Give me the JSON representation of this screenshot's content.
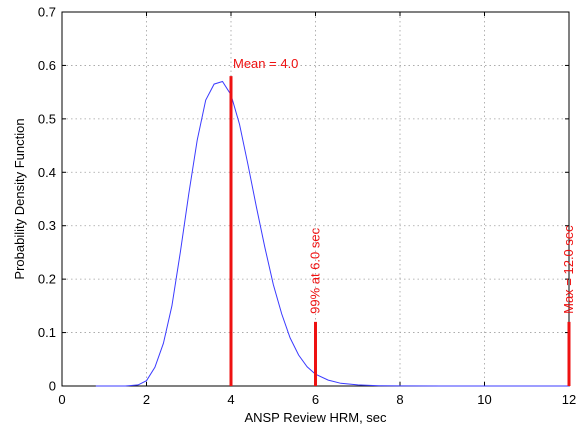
{
  "chart_data": {
    "type": "line",
    "xlabel": "ANSP Review HRM, sec",
    "ylabel": "Probability Density Function",
    "xlim": [
      0,
      12
    ],
    "ylim": [
      0,
      0.7
    ],
    "x_ticks": [
      "0",
      "2",
      "4",
      "6",
      "8",
      "10",
      "12"
    ],
    "y_ticks": [
      "0",
      "0.1",
      "0.2",
      "0.3",
      "0.4",
      "0.5",
      "0.6",
      "0.7"
    ],
    "grid": true,
    "line_color": "#3b3bff",
    "marker_color": "#ee1111",
    "curve": {
      "x": [
        0.8,
        1.5,
        1.8,
        2.0,
        2.2,
        2.4,
        2.6,
        2.8,
        3.0,
        3.2,
        3.4,
        3.6,
        3.8,
        4.0,
        4.2,
        4.4,
        4.6,
        4.8,
        5.0,
        5.2,
        5.4,
        5.6,
        5.8,
        6.0,
        6.3,
        6.6,
        7.0,
        7.5,
        8.0,
        9.0,
        10.0,
        11.0,
        12.0
      ],
      "y": [
        0.0,
        0.0,
        0.002,
        0.01,
        0.035,
        0.08,
        0.15,
        0.25,
        0.36,
        0.46,
        0.535,
        0.565,
        0.57,
        0.545,
        0.49,
        0.415,
        0.335,
        0.26,
        0.19,
        0.135,
        0.09,
        0.058,
        0.036,
        0.022,
        0.011,
        0.005,
        0.002,
        0.0006,
        0.0001,
        0.0,
        0.0,
        0.0,
        0.0
      ]
    },
    "markers": [
      {
        "x": 4.0,
        "y": 0.58,
        "label": "Mean = 4.0"
      },
      {
        "x": 6.0,
        "y": 0.12,
        "label": "99% at 6.0 sec"
      },
      {
        "x": 12.0,
        "y": 0.12,
        "label": "Max = 12.0 sec"
      }
    ]
  }
}
